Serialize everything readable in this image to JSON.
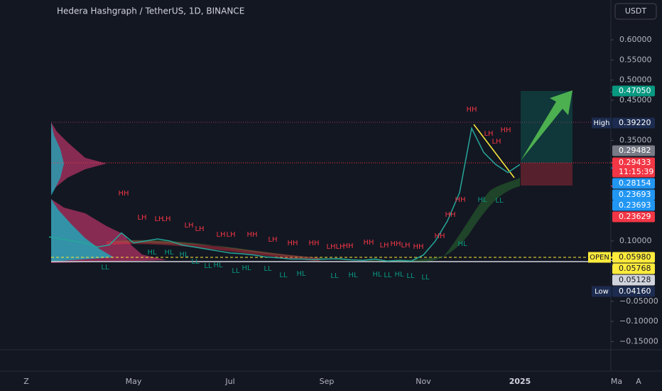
{
  "chart_data": {
    "type": "line",
    "title": "Hedera Hashgraph / TetherUS, 1D, BINANCE",
    "currency": "USDT",
    "toolbar": [
      "Z",
      "A"
    ],
    "color": "#26a69a",
    "categories": [
      null,
      null,
      null,
      null,
      null,
      null,
      null,
      "May",
      null,
      null,
      null,
      null,
      null,
      null,
      null,
      "Jul",
      null,
      null,
      null,
      null,
      null,
      null,
      null,
      "Sep",
      null,
      null,
      null,
      null,
      null,
      null,
      null,
      "Nov",
      null,
      null,
      null,
      null,
      null,
      null,
      null,
      "2025",
      null,
      null,
      null,
      null,
      null,
      null,
      null,
      "Ma"
    ],
    "values": [
      0.11,
      0.105,
      0.1,
      0.095,
      0.085,
      0.09,
      0.12,
      0.095,
      0.1,
      0.105,
      0.1,
      0.09,
      0.085,
      0.08,
      0.075,
      0.07,
      0.068,
      0.065,
      0.06,
      0.058,
      0.055,
      0.055,
      0.054,
      0.055,
      0.056,
      0.053,
      0.052,
      0.055,
      0.05,
      0.052,
      0.05,
      0.065,
      0.1,
      0.15,
      0.22,
      0.38,
      0.32,
      0.29,
      0.27,
      0.29,
      null,
      null,
      null,
      null,
      null,
      null,
      null,
      null
    ],
    "ylim": [
      -0.167,
      0.699
    ],
    "yticks": [
      {
        "value": 0.6,
        "label": "0.60000"
      },
      {
        "value": 0.55,
        "label": "0.55000"
      },
      {
        "value": 0.5,
        "label": "0.50000"
      },
      {
        "value": 0.45,
        "label": "0.45000"
      },
      {
        "value": 0.35,
        "label": "0.35000"
      },
      {
        "value": 0.1,
        "label": "0.10000"
      },
      {
        "value": -0.05,
        "label": "−0.05000"
      },
      {
        "value": -0.1,
        "label": "−0.10000"
      },
      {
        "value": -0.15,
        "label": "−0.15000"
      }
    ],
    "price_labels": [
      {
        "value": 0.4705,
        "label": "0.47050",
        "color": "#089981"
      },
      {
        "value": 0.3922,
        "label": "0.39220",
        "tag": "High",
        "color": "#1c2b4f"
      },
      {
        "value": 0.29482,
        "label": "0.29482",
        "color": "#787b86"
      },
      {
        "value": 0.29433,
        "label": "0.29433",
        "countdown": "11:15:39",
        "color": "#f23645"
      },
      {
        "value": 0.28154,
        "label": "0.28154",
        "color": "#2196f3"
      },
      {
        "value": 0.23693,
        "label": "0.23693",
        "color": "#2196f3"
      },
      {
        "value": 0.23693,
        "label": "0.23693",
        "color": "#2196f3"
      },
      {
        "value": 0.23629,
        "label": "0.23629",
        "color": "#f23645"
      },
      {
        "value": 0.0598,
        "label": "0.05980",
        "tag": "OPEN",
        "color": "#ffeb3b"
      },
      {
        "value": 0.05768,
        "label": "0.05768",
        "color": "#ffeb3b"
      },
      {
        "value": 0.05128,
        "label": "0.05128",
        "color": "#d1d4dc"
      },
      {
        "value": 0.0416,
        "label": "0.04160",
        "tag": "Low",
        "color": "#1c2b4f"
      }
    ],
    "highs": [
      "HH",
      "LH",
      "LH",
      "LH",
      "LH",
      "LH",
      "LH",
      "LH",
      "HH",
      "LH",
      "HH",
      "HH",
      "LH",
      "LH",
      "HH",
      "HH",
      "LH",
      "HH",
      "LH",
      "HH",
      "HH",
      "HH",
      "HH",
      "HH",
      "LH",
      "HH",
      "LH"
    ],
    "lows": [
      "HL",
      "HL",
      "HL",
      "LL",
      "LL",
      "LL",
      "HL",
      "LL",
      "HL",
      "LL",
      "LL",
      "HL",
      "LL",
      "HL",
      "HL",
      "LL",
      "HL",
      "LL",
      "LL",
      "HL",
      "HL",
      "LL"
    ]
  }
}
